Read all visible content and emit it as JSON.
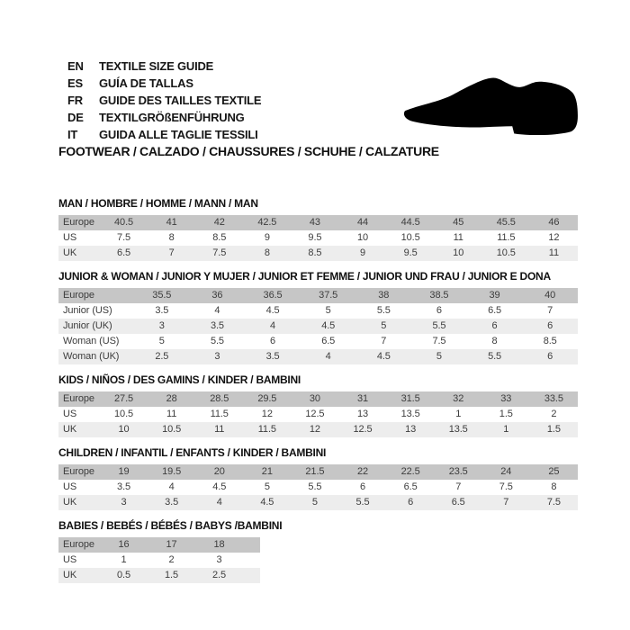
{
  "header": {
    "languages": [
      {
        "code": "EN",
        "label": "TEXTILE SIZE GUIDE"
      },
      {
        "code": "ES",
        "label": "GUÍA DE TALLAS"
      },
      {
        "code": "FR",
        "label": "GUIDE DES TAILLES TEXTILE"
      },
      {
        "code": "DE",
        "label": "TEXTILGRÖßENFÜHRUNG"
      },
      {
        "code": "IT",
        "label": "GUIDA ALLE TAGLIE TESSILI"
      }
    ],
    "category_line": "FOOTWEAR / CALZADO / CHAUSSURES / SCHUHE / CALZATURE"
  },
  "icons": {
    "shoe": "dress-shoe-silhouette"
  },
  "colors": {
    "background": "#ffffff",
    "header_row_bg": "#c6c6c6",
    "alt_row_bg": "#ededed",
    "table_text": "#3d3d3d",
    "title_text": "#111111",
    "shoe": "#000000"
  },
  "tables": [
    {
      "id": "man",
      "title": "MAN / HOMBRE / HOMME / MANN / MAN",
      "rows": [
        {
          "label": "Europe",
          "values": [
            "40.5",
            "41",
            "42",
            "42.5",
            "43",
            "44",
            "44.5",
            "45",
            "45.5",
            "46"
          ]
        },
        {
          "label": "US",
          "values": [
            "7.5",
            "8",
            "8.5",
            "9",
            "9.5",
            "10",
            "10.5",
            "11",
            "11.5",
            "12"
          ]
        },
        {
          "label": "UK",
          "values": [
            "6.5",
            "7",
            "7.5",
            "8",
            "8.5",
            "9",
            "9.5",
            "10",
            "10.5",
            "11"
          ]
        }
      ]
    },
    {
      "id": "junior-woman",
      "title": "JUNIOR & WOMAN / JUNIOR Y MUJER / JUNIOR ET FEMME / JUNIOR UND FRAU / JUNIOR E DONA",
      "rows": [
        {
          "label": "Europe",
          "values": [
            "35.5",
            "36",
            "36.5",
            "37.5",
            "38",
            "38.5",
            "39",
            "40"
          ]
        },
        {
          "label": "Junior (US)",
          "values": [
            "3.5",
            "4",
            "4.5",
            "5",
            "5.5",
            "6",
            "6.5",
            "7"
          ]
        },
        {
          "label": "Junior (UK)",
          "values": [
            "3",
            "3.5",
            "4",
            "4.5",
            "5",
            "5.5",
            "6",
            "6"
          ]
        },
        {
          "label": "Woman (US)",
          "values": [
            "5",
            "5.5",
            "6",
            "6.5",
            "7",
            "7.5",
            "8",
            "8.5"
          ]
        },
        {
          "label": "Woman (UK)",
          "values": [
            "2.5",
            "3",
            "3.5",
            "4",
            "4.5",
            "5",
            "5.5",
            "6"
          ]
        }
      ]
    },
    {
      "id": "kids",
      "title": "KIDS / NIÑOS / DES GAMINS / KINDER / BAMBINI",
      "rows": [
        {
          "label": "Europe",
          "values": [
            "27.5",
            "28",
            "28.5",
            "29.5",
            "30",
            "31",
            "31.5",
            "32",
            "33",
            "33.5"
          ]
        },
        {
          "label": "US",
          "values": [
            "10.5",
            "11",
            "11.5",
            "12",
            "12.5",
            "13",
            "13.5",
            "1",
            "1.5",
            "2"
          ]
        },
        {
          "label": "UK",
          "values": [
            "10",
            "10.5",
            "11",
            "11.5",
            "12",
            "12.5",
            "13",
            "13.5",
            "1",
            "1.5"
          ]
        }
      ]
    },
    {
      "id": "children",
      "title": "CHILDREN / INFANTIL / ENFANTS / KINDER / BAMBINI",
      "rows": [
        {
          "label": "Europe",
          "values": [
            "19",
            "19.5",
            "20",
            "21",
            "21.5",
            "22",
            "22.5",
            "23.5",
            "24",
            "25"
          ]
        },
        {
          "label": "US",
          "values": [
            "3.5",
            "4",
            "4.5",
            "5",
            "5.5",
            "6",
            "6.5",
            "7",
            "7.5",
            "8"
          ]
        },
        {
          "label": "UK",
          "values": [
            "3",
            "3.5",
            "4",
            "4.5",
            "5",
            "5.5",
            "6",
            "6.5",
            "7",
            "7.5"
          ]
        }
      ]
    },
    {
      "id": "babies",
      "title": "BABIES / BEBÉS / BÉBÉS / BABYS /BAMBINI",
      "narrow": true,
      "rows": [
        {
          "label": "Europe",
          "values": [
            "16",
            "17",
            "18"
          ]
        },
        {
          "label": "US",
          "values": [
            "1",
            "2",
            "3"
          ]
        },
        {
          "label": "UK",
          "values": [
            "0.5",
            "1.5",
            "2.5"
          ]
        }
      ]
    }
  ]
}
